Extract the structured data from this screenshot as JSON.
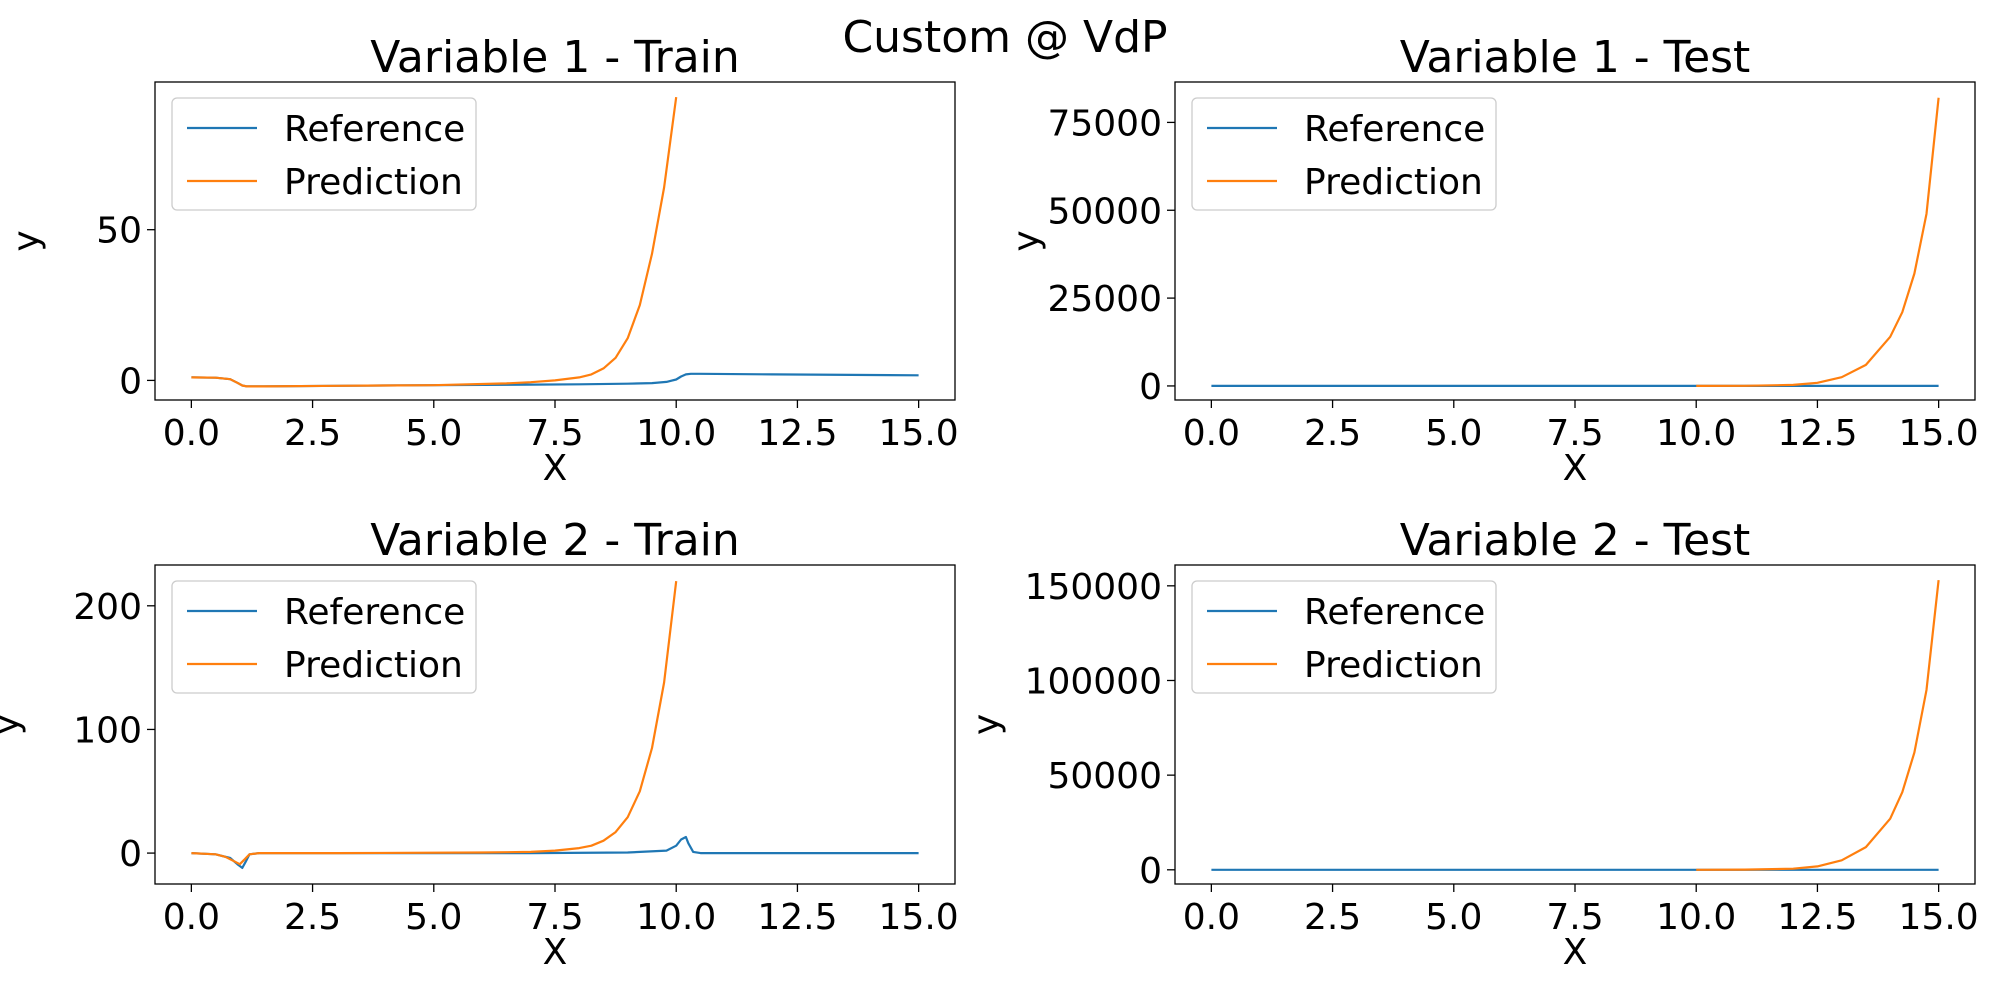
{
  "figure": {
    "suptitle": "Custom @ VdP"
  },
  "colors": {
    "reference": "#1f77b4",
    "prediction": "#ff7f0e"
  },
  "chart_data": [
    {
      "type": "line",
      "title": "Variable 1 - Train",
      "xlabel": "X",
      "ylabel": "y",
      "xlim": [
        -0.75,
        15.75
      ],
      "ylim": [
        -6.5,
        99
      ],
      "xticks": [
        0,
        2.5,
        5,
        7.5,
        10,
        12.5,
        15
      ],
      "xtick_labels": [
        "0.0",
        "2.5",
        "5.0",
        "7.5",
        "10.0",
        "12.5",
        "15.0"
      ],
      "yticks": [
        0,
        50
      ],
      "ytick_labels": [
        "0",
        "50"
      ],
      "grid": false,
      "legend": "upper-left",
      "series": [
        {
          "name": "Reference",
          "color": "#1f77b4",
          "x": [
            0,
            0.5,
            0.8,
            0.95,
            1.05,
            1.15,
            1.5,
            3,
            5,
            7,
            8,
            9,
            9.5,
            9.8,
            10.0,
            10.1,
            10.2,
            10.3,
            10.5,
            12,
            15
          ],
          "y": [
            1.0,
            0.9,
            0.4,
            -0.8,
            -1.7,
            -2.0,
            -2.0,
            -1.8,
            -1.6,
            -1.4,
            -1.3,
            -1.1,
            -0.9,
            -0.5,
            0.3,
            1.3,
            2.0,
            2.2,
            2.2,
            2.0,
            1.7
          ]
        },
        {
          "name": "Prediction",
          "color": "#ff7f0e",
          "x": [
            0,
            0.5,
            0.8,
            0.95,
            1.05,
            1.15,
            1.5,
            3,
            5,
            6.5,
            7,
            7.5,
            8,
            8.25,
            8.5,
            8.75,
            9,
            9.25,
            9.5,
            9.75,
            10.0
          ],
          "y": [
            1.0,
            0.9,
            0.4,
            -0.8,
            -1.7,
            -2.0,
            -2.0,
            -1.8,
            -1.6,
            -1.0,
            -0.6,
            0.0,
            1.0,
            2.0,
            4.0,
            7.5,
            14,
            25,
            42,
            64,
            94
          ]
        }
      ]
    },
    {
      "type": "line",
      "title": "Variable 1 - Test",
      "xlabel": "X",
      "ylabel": "y",
      "xlim": [
        -0.75,
        15.75
      ],
      "ylim": [
        -4000,
        86500
      ],
      "xticks": [
        0,
        2.5,
        5,
        7.5,
        10,
        12.5,
        15
      ],
      "xtick_labels": [
        "0.0",
        "2.5",
        "5.0",
        "7.5",
        "10.0",
        "12.5",
        "15.0"
      ],
      "yticks": [
        0,
        25000,
        50000,
        75000
      ],
      "ytick_labels": [
        "0",
        "25000",
        "50000",
        "75000"
      ],
      "grid": false,
      "legend": "upper-left",
      "series": [
        {
          "name": "Reference",
          "color": "#1f77b4",
          "x": [
            0,
            5,
            10,
            15
          ],
          "y": [
            0,
            0,
            0,
            0
          ]
        },
        {
          "name": "Prediction",
          "color": "#ff7f0e",
          "x": [
            10,
            11,
            12,
            12.5,
            13,
            13.5,
            14,
            14.25,
            14.5,
            14.75,
            15.0
          ],
          "y": [
            0,
            50,
            300,
            900,
            2500,
            6000,
            14000,
            21000,
            32000,
            49000,
            82000
          ]
        }
      ]
    },
    {
      "type": "line",
      "title": "Variable 2 - Train",
      "xlabel": "X",
      "ylabel": "y",
      "xlim": [
        -0.75,
        15.75
      ],
      "ylim": [
        -25,
        233
      ],
      "xticks": [
        0,
        2.5,
        5,
        7.5,
        10,
        12.5,
        15
      ],
      "xtick_labels": [
        "0.0",
        "2.5",
        "5.0",
        "7.5",
        "10.0",
        "12.5",
        "15.0"
      ],
      "yticks": [
        0,
        100,
        200
      ],
      "ytick_labels": [
        "0",
        "100",
        "200"
      ],
      "grid": false,
      "legend": "upper-left",
      "series": [
        {
          "name": "Reference",
          "color": "#1f77b4",
          "x": [
            0,
            0.5,
            0.8,
            0.95,
            1.05,
            1.12,
            1.2,
            1.4,
            3,
            7,
            9,
            9.8,
            10.0,
            10.1,
            10.2,
            10.25,
            10.35,
            10.5,
            15
          ],
          "y": [
            0,
            -1,
            -4,
            -9,
            -12,
            -7,
            -1,
            0,
            0,
            0,
            0.5,
            2,
            6,
            11,
            13,
            8,
            1,
            0,
            0
          ]
        },
        {
          "name": "Prediction",
          "color": "#ff7f0e",
          "x": [
            0,
            0.5,
            0.7,
            0.9,
            1.0,
            1.1,
            1.2,
            1.4,
            3,
            6,
            7,
            7.5,
            8,
            8.25,
            8.5,
            8.75,
            9,
            9.25,
            9.5,
            9.75,
            10.0
          ],
          "y": [
            0,
            -1,
            -3,
            -7,
            -9,
            -5,
            -1,
            0,
            0,
            0.5,
            1,
            2,
            4,
            6,
            10,
            17,
            29,
            50,
            85,
            138,
            220
          ]
        }
      ]
    },
    {
      "type": "line",
      "title": "Variable 2 - Test",
      "xlabel": "X",
      "ylabel": "y",
      "xlim": [
        -0.75,
        15.75
      ],
      "ylim": [
        -7500,
        161000
      ],
      "xticks": [
        0,
        2.5,
        5,
        7.5,
        10,
        12.5,
        15
      ],
      "xtick_labels": [
        "0.0",
        "2.5",
        "5.0",
        "7.5",
        "10.0",
        "12.5",
        "15.0"
      ],
      "yticks": [
        0,
        50000,
        100000,
        150000
      ],
      "ytick_labels": [
        "0",
        "50000",
        "100000",
        "150000"
      ],
      "grid": false,
      "legend": "upper-left",
      "series": [
        {
          "name": "Reference",
          "color": "#1f77b4",
          "x": [
            0,
            5,
            10,
            15
          ],
          "y": [
            0,
            0,
            0,
            0
          ]
        },
        {
          "name": "Prediction",
          "color": "#ff7f0e",
          "x": [
            10,
            11,
            12,
            12.5,
            13,
            13.5,
            14,
            14.25,
            14.5,
            14.75,
            15.0
          ],
          "y": [
            0,
            100,
            600,
            1800,
            5000,
            12000,
            27000,
            41000,
            62000,
            95000,
            153000
          ]
        }
      ]
    }
  ]
}
